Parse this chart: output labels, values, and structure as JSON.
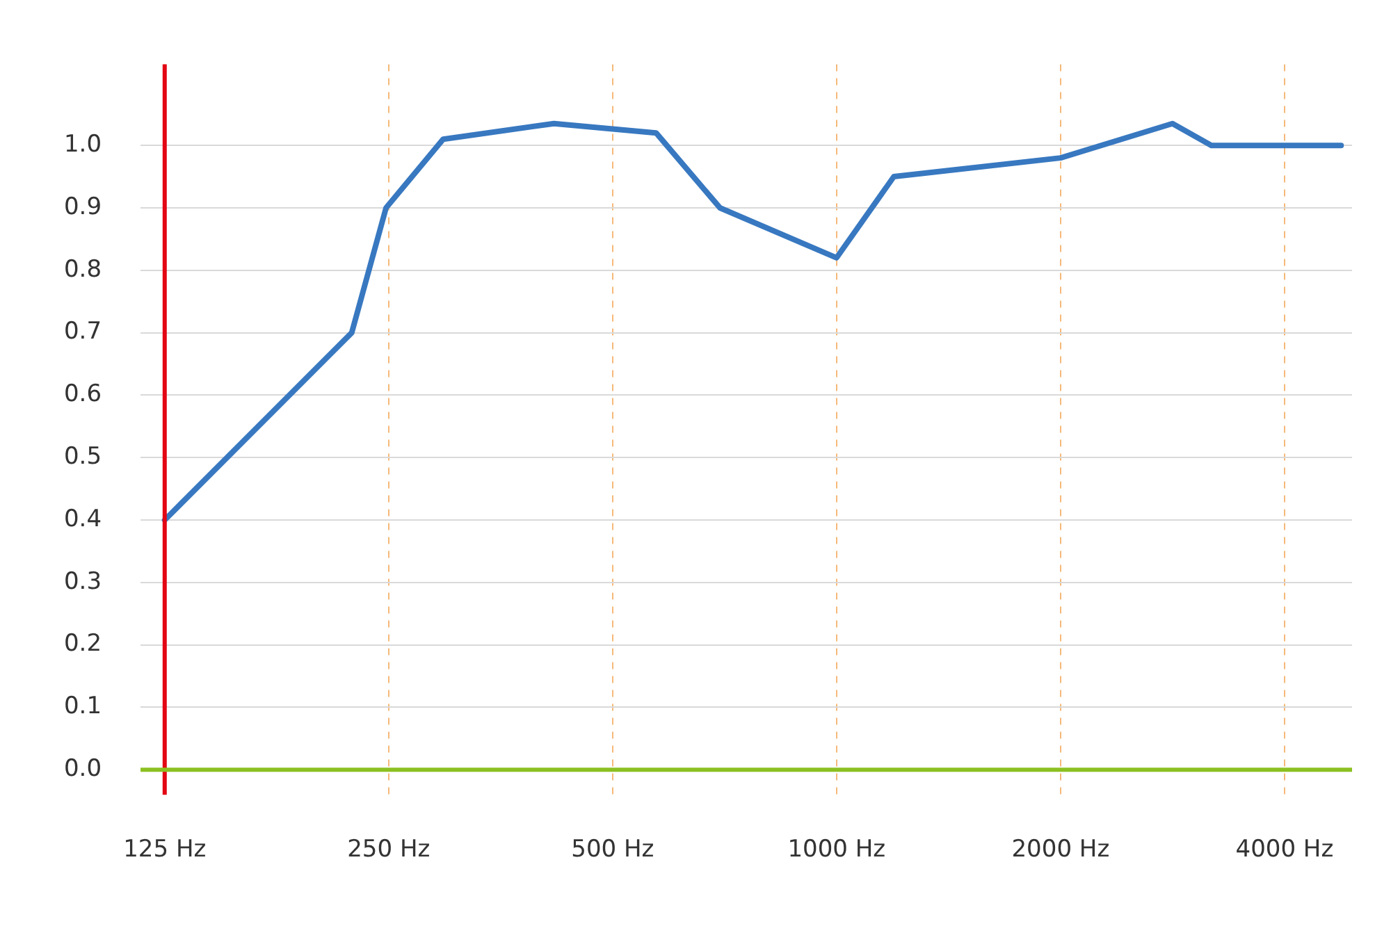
{
  "chart_data": {
    "type": "line",
    "x": [
      125,
      223,
      248,
      296,
      417,
      572,
      697,
      1000,
      1194,
      2000,
      2828,
      3190,
      4766
    ],
    "series": [
      {
        "color": "#3878c0",
        "values": [
          0.4,
          0.7,
          0.9,
          1.01,
          1.035,
          1.02,
          0.9,
          0.82,
          0.95,
          0.98,
          1.035,
          1.0,
          1.0
        ]
      }
    ],
    "log": "x",
    "xlim": [
      116,
      4930
    ],
    "xticks": [
      {
        "value": 125,
        "label": "125 Hz"
      },
      {
        "value": 250,
        "label": "250 Hz"
      },
      {
        "value": 500,
        "label": "500 Hz"
      },
      {
        "value": 1000,
        "label": "1000 Hz"
      },
      {
        "value": 2000,
        "label": "2000 Hz"
      },
      {
        "value": 4000,
        "label": "4000 Hz"
      }
    ],
    "ylim": [
      -0.04,
      1.13
    ],
    "yticks": [
      {
        "value": 0,
        "label": "0.0"
      },
      0.1,
      0.2,
      0.3,
      0.4,
      0.5,
      0.6,
      0.7,
      0.8,
      0.9,
      {
        "value": 1,
        "label": "1.0"
      }
    ],
    "grid": true,
    "marker": "none",
    "line_style": "solid",
    "ref_lines": [
      {
        "axis": "x",
        "value": 125,
        "color": "#e30613"
      },
      {
        "axis": "y",
        "value": 0,
        "color": "#8cc021"
      }
    ]
  }
}
